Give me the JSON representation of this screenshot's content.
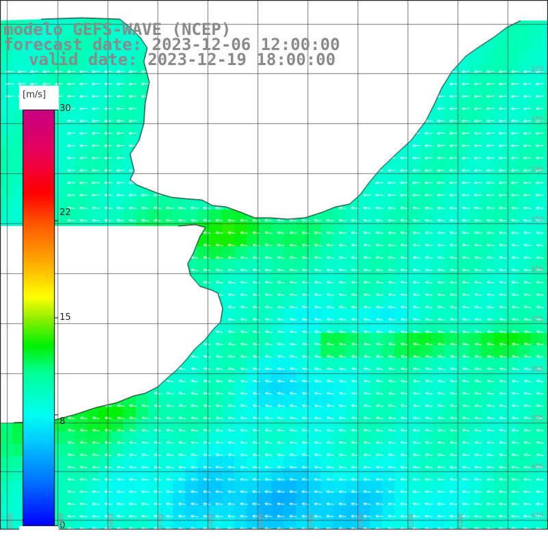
{
  "header": {
    "line1": "modelo GEFS-WAVE (NCEP)",
    "line2": "forecast date: 2023-12-06 12:00:00",
    "line3": "valid date: 2023-12-19 18:00:00"
  },
  "colorbar": {
    "unit": "[m/s]",
    "min": 0,
    "max": 30,
    "ticks": [
      "30",
      "22",
      "15",
      "8",
      "0"
    ],
    "tick_values": [
      30,
      22,
      15,
      8,
      0
    ]
  },
  "graticule": {
    "lat_labels": [
      "32S",
      "33S",
      "34S",
      "35S",
      "36S",
      "37S",
      "38S",
      "39S",
      "40S",
      "41S"
    ],
    "lon_labels": [
      "60W",
      "59W",
      "58W",
      "57W",
      "56W",
      "55W",
      "54W",
      "53W",
      "52W",
      "51W"
    ]
  },
  "colors": {
    "land": "#ffffff",
    "coastline": "#000000",
    "grid": "#555555",
    "arrows": "#ffffff",
    "title": "#8a8a8a"
  }
}
